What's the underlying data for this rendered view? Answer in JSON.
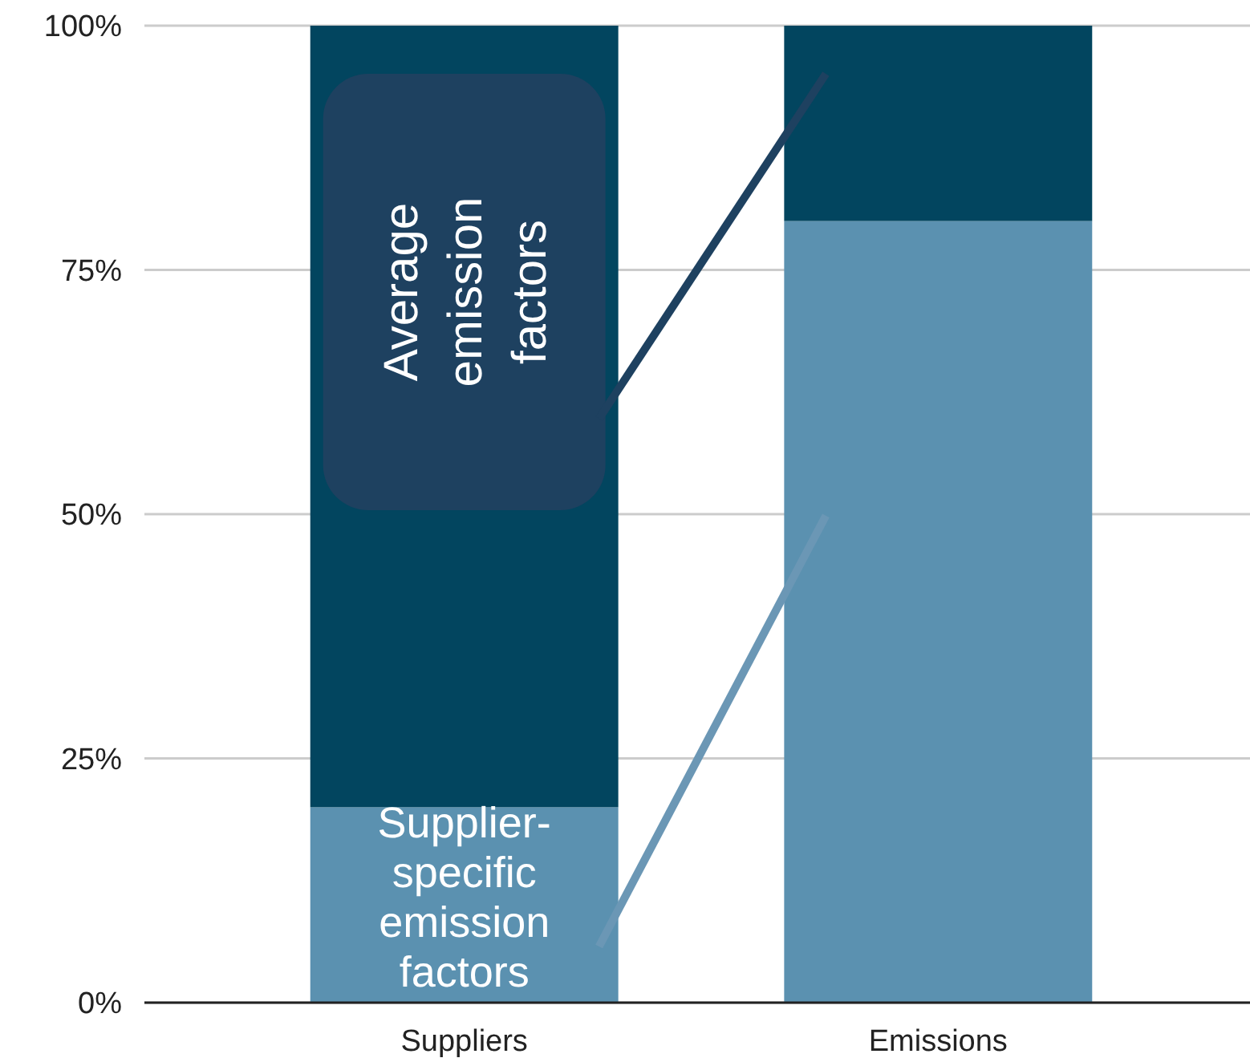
{
  "chart_data": {
    "type": "bar",
    "stacked": true,
    "categories": [
      "Suppliers",
      "Emissions"
    ],
    "series": [
      {
        "name": "Supplier-specific emission factors",
        "color": "#5b91b0",
        "values": [
          20,
          80
        ]
      },
      {
        "name": "Average emission factors",
        "color": "#02455f",
        "values": [
          80,
          20
        ]
      }
    ],
    "ylim": [
      0,
      100
    ],
    "yticks": [
      {
        "value": 0,
        "label": "0%"
      },
      {
        "value": 25,
        "label": "25%"
      },
      {
        "value": 50,
        "label": "50%"
      },
      {
        "value": 75,
        "label": "75%"
      },
      {
        "value": 100,
        "label": "100%"
      }
    ],
    "grid": "y"
  }
}
